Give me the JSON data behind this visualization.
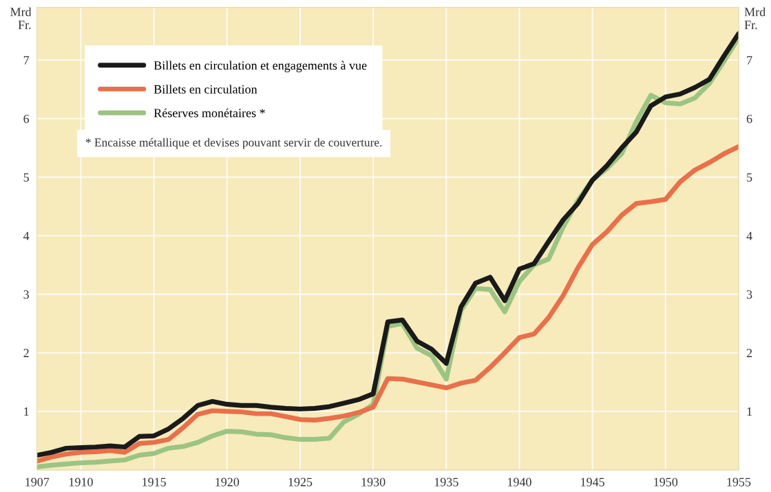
{
  "chart_data": {
    "type": "line",
    "x": [
      1907,
      1908,
      1909,
      1910,
      1911,
      1912,
      1913,
      1914,
      1915,
      1916,
      1917,
      1918,
      1919,
      1920,
      1921,
      1922,
      1923,
      1924,
      1925,
      1926,
      1927,
      1928,
      1929,
      1930,
      1931,
      1932,
      1933,
      1934,
      1935,
      1936,
      1937,
      1938,
      1939,
      1940,
      1941,
      1942,
      1943,
      1944,
      1945,
      1946,
      1947,
      1948,
      1949,
      1950,
      1951,
      1952,
      1953,
      1954,
      1955
    ],
    "series": [
      {
        "name": "Réserves monétaires *",
        "color": "#9cc483",
        "values": [
          0.05,
          0.08,
          0.1,
          0.12,
          0.13,
          0.15,
          0.17,
          0.25,
          0.28,
          0.37,
          0.4,
          0.47,
          0.58,
          0.66,
          0.65,
          0.61,
          0.6,
          0.55,
          0.52,
          0.52,
          0.54,
          0.82,
          0.95,
          1.12,
          2.45,
          2.5,
          2.08,
          1.95,
          1.55,
          2.72,
          3.1,
          3.08,
          2.7,
          3.22,
          3.5,
          3.6,
          4.15,
          4.6,
          4.95,
          5.15,
          5.4,
          5.95,
          6.4,
          6.27,
          6.25,
          6.35,
          6.6,
          6.98,
          7.38
        ]
      },
      {
        "name": "Billets en circulation",
        "color": "#e8704a",
        "values": [
          0.15,
          0.22,
          0.27,
          0.3,
          0.31,
          0.33,
          0.3,
          0.45,
          0.47,
          0.52,
          0.72,
          0.95,
          1.01,
          1.0,
          0.99,
          0.96,
          0.96,
          0.91,
          0.86,
          0.85,
          0.88,
          0.92,
          0.98,
          1.07,
          1.56,
          1.55,
          1.5,
          1.45,
          1.4,
          1.48,
          1.53,
          1.75,
          2.0,
          2.26,
          2.32,
          2.6,
          2.98,
          3.45,
          3.85,
          4.07,
          4.35,
          4.55,
          4.58,
          4.62,
          4.92,
          5.12,
          5.25,
          5.4,
          5.52
        ]
      },
      {
        "name": "Billets en circulation et engagements à vue",
        "color": "#1a1a1a",
        "values": [
          0.25,
          0.3,
          0.37,
          0.38,
          0.39,
          0.41,
          0.39,
          0.57,
          0.58,
          0.7,
          0.88,
          1.1,
          1.17,
          1.12,
          1.1,
          1.1,
          1.07,
          1.05,
          1.04,
          1.05,
          1.08,
          1.14,
          1.2,
          1.3,
          2.53,
          2.56,
          2.2,
          2.06,
          1.82,
          2.78,
          3.19,
          3.29,
          2.89,
          3.43,
          3.52,
          3.9,
          4.27,
          4.55,
          4.95,
          5.2,
          5.5,
          5.77,
          6.22,
          6.37,
          6.42,
          6.53,
          6.67,
          7.07,
          7.45
        ]
      }
    ],
    "ylabel": "Mrd\nFr.",
    "y2label": "Mrd\nFr.",
    "xlim": [
      1907,
      1955
    ],
    "xticks": [
      1907,
      1910,
      1915,
      1920,
      1925,
      1930,
      1935,
      1940,
      1945,
      1950,
      1955
    ],
    "ylim": [
      0,
      7.9
    ],
    "yticks": [
      1,
      2,
      3,
      4,
      5,
      6,
      7
    ],
    "y2lim": [
      0,
      7.9
    ],
    "y2ticks": [
      1,
      2,
      3,
      4,
      5,
      6,
      7
    ],
    "grid": true,
    "legend": "top left",
    "marker": "none",
    "line_style": "solid",
    "annotations": [
      "* Encaisse métallique et devises pouvant servir de couverture."
    ]
  }
}
